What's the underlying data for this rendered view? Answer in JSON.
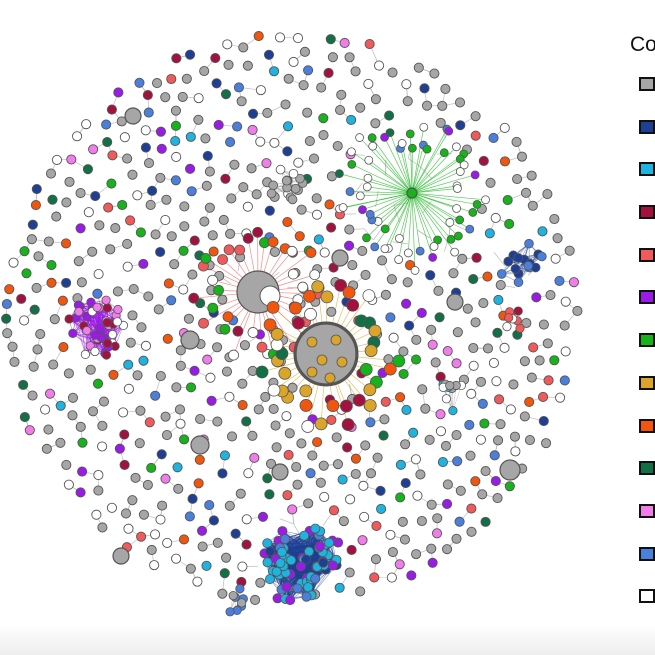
{
  "legend": {
    "title": "Co",
    "items": [
      {
        "color": "#a6a6a6"
      },
      {
        "color": "#1f3f94"
      },
      {
        "color": "#1fb3e0"
      },
      {
        "color": "#a3123f"
      },
      {
        "color": "#f05a5a"
      },
      {
        "color": "#9a1be8"
      },
      {
        "color": "#16b31a"
      },
      {
        "color": "#daa52a"
      },
      {
        "color": "#f2560d"
      },
      {
        "color": "#137046"
      },
      {
        "color": "#f07de8"
      },
      {
        "color": "#4a7fdb"
      },
      {
        "color": "#ffffff"
      }
    ]
  },
  "network": {
    "node_stroke": "#555555",
    "edge_color": "#b5b5b5",
    "hubs": [
      {
        "name": "gold-hub",
        "color": "#a6a6a6",
        "ring": "#555555",
        "accent": "#daa52a"
      },
      {
        "name": "salmon-hub",
        "color": "#a6a6a6",
        "ring": "#555555",
        "accent": "#f05a5a"
      },
      {
        "name": "green-star-hub",
        "color": "#16b31a",
        "accent": "#16b31a"
      }
    ]
  }
}
